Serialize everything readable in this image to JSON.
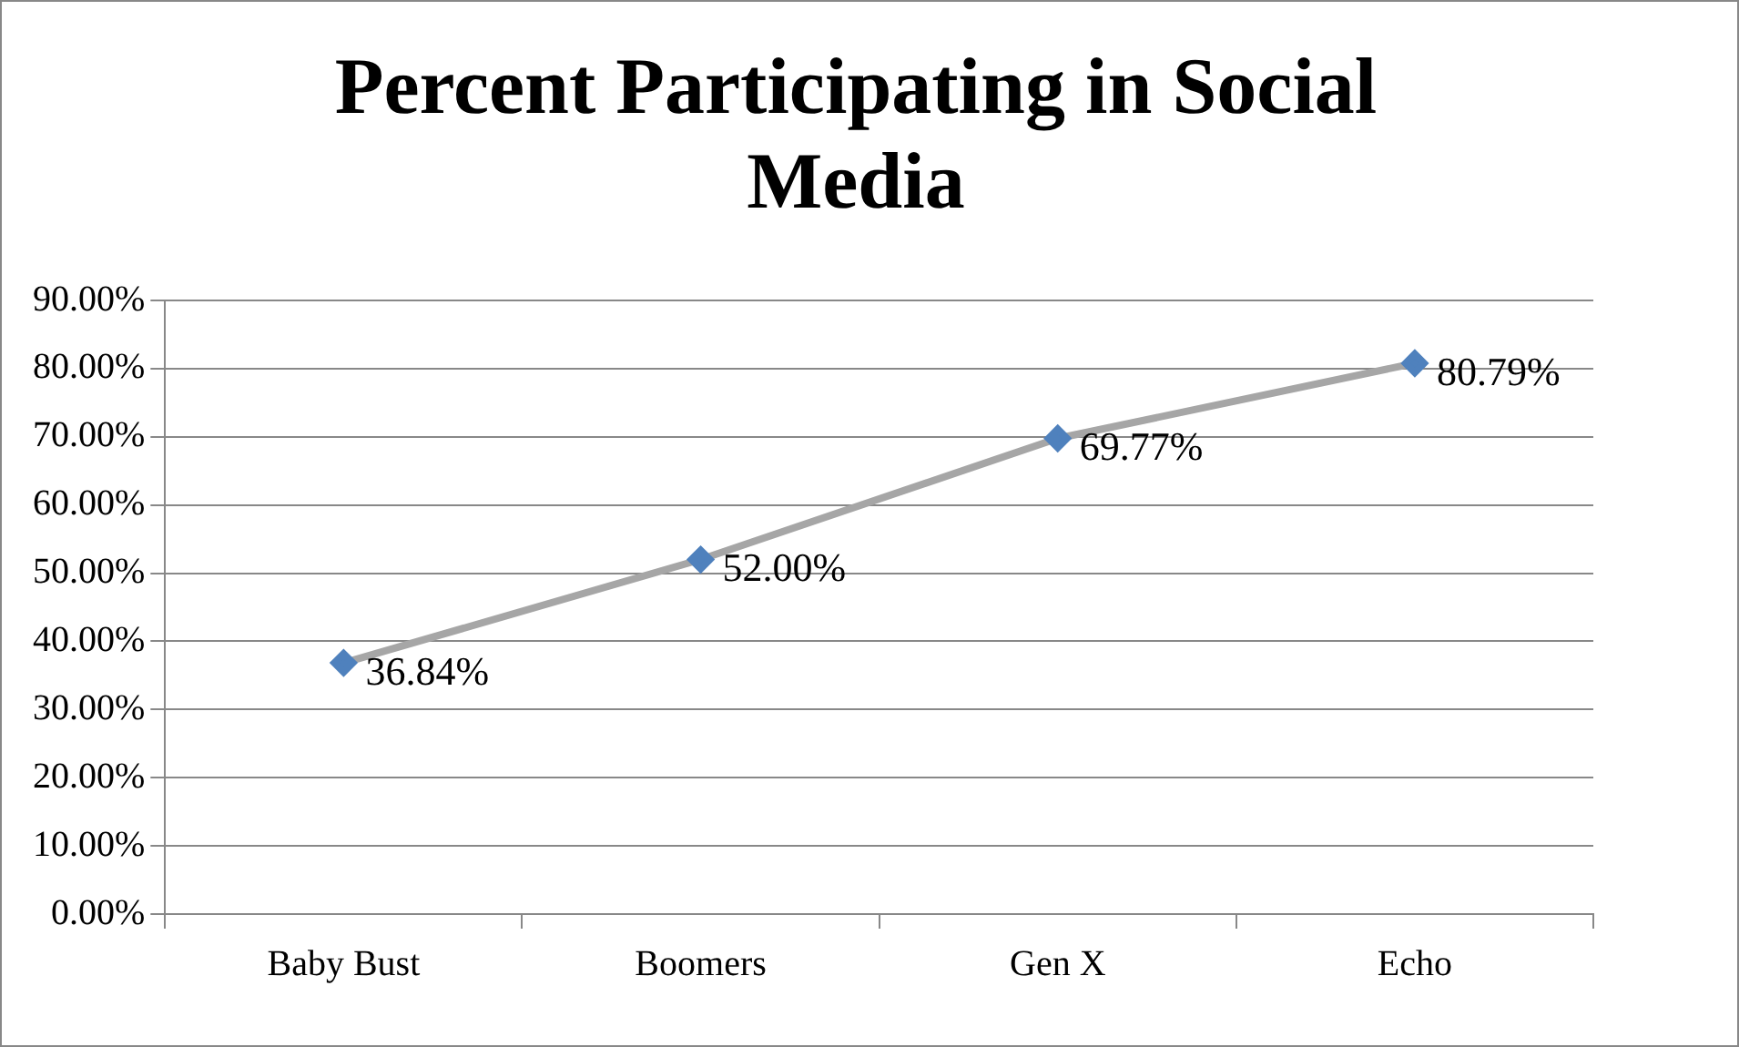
{
  "chart_data": {
    "type": "line",
    "title": "Percent Participating in Social Media",
    "categories": [
      "Baby Bust",
      "Boomers",
      "Gen X",
      "Echo"
    ],
    "series": [
      {
        "color": "#a6a6a6",
        "values": [
          36.84,
          52.0,
          69.77,
          80.79
        ],
        "colors": [
          "#4f81bd",
          "#4f81bd",
          "#4f81bd",
          "#4f81bd"
        ],
        "value_labels": [
          "36.84%",
          "52.00%",
          "69.77%",
          "80.79%"
        ]
      }
    ],
    "marker": "diamond",
    "ylim": [
      0,
      90
    ],
    "yticks": [
      {
        "value": 0,
        "label": "0.00%"
      },
      {
        "value": 10,
        "label": "10.00%"
      },
      {
        "value": 20,
        "label": "20.00%"
      },
      {
        "value": 30,
        "label": "30.00%"
      },
      {
        "value": 40,
        "label": "40.00%"
      },
      {
        "value": 50,
        "label": "50.00%"
      },
      {
        "value": 60,
        "label": "60.00%"
      },
      {
        "value": 70,
        "label": "70.00%"
      },
      {
        "value": 80,
        "label": "80.00%"
      },
      {
        "value": 90,
        "label": "90.00%"
      }
    ],
    "grid": "y",
    "legend": false
  }
}
